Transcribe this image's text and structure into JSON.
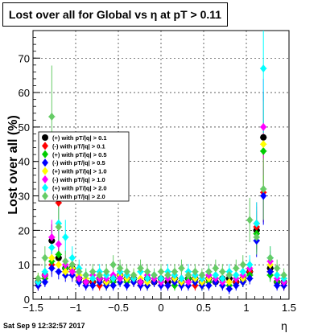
{
  "chart_data": {
    "type": "scatter",
    "title": "Lost over all for Global vs   η at pT > 0.11",
    "xlabel": "η",
    "ylabel": "Lost over all (%)",
    "xlim": [
      -1.5,
      1.5
    ],
    "ylim": [
      0,
      78
    ],
    "x_ticks": [
      -1.5,
      -1,
      -0.5,
      0,
      0.5,
      1,
      1.5
    ],
    "x_tick_labels": [
      "−1.5",
      "−1",
      "−0.5",
      "0",
      "0.5",
      "1",
      "1.5"
    ],
    "y_ticks": [
      0,
      10,
      20,
      30,
      40,
      50,
      60,
      70
    ],
    "y_tick_labels": [
      "0",
      "10",
      "20",
      "30",
      "40",
      "50",
      "60",
      "70"
    ],
    "grid": true,
    "legend_position": "upper-left",
    "footer": "Sat Sep  9 12:32:57 2017",
    "series": [
      {
        "name": "(+) with pT/|q| > 0.1",
        "marker": "circle",
        "color": "#000000",
        "points": [
          [
            -1.44,
            5
          ],
          [
            -1.36,
            7
          ],
          [
            -1.28,
            17
          ],
          [
            -1.2,
            12
          ],
          [
            -1.12,
            9
          ],
          [
            -1.04,
            9
          ],
          [
            -0.96,
            6
          ],
          [
            -0.88,
            5
          ],
          [
            -0.8,
            5
          ],
          [
            -0.72,
            6
          ],
          [
            -0.64,
            5
          ],
          [
            -0.56,
            6
          ],
          [
            -0.48,
            7
          ],
          [
            -0.4,
            6
          ],
          [
            -0.32,
            6
          ],
          [
            -0.24,
            5
          ],
          [
            -0.16,
            6
          ],
          [
            -0.08,
            5
          ],
          [
            0,
            6
          ],
          [
            0.08,
            5
          ],
          [
            0.16,
            6
          ],
          [
            0.24,
            5
          ],
          [
            0.32,
            6
          ],
          [
            0.4,
            6
          ],
          [
            0.48,
            5
          ],
          [
            0.56,
            6
          ],
          [
            0.64,
            5
          ],
          [
            0.72,
            6
          ],
          [
            0.8,
            6
          ],
          [
            0.88,
            5
          ],
          [
            0.96,
            6
          ],
          [
            1.04,
            8
          ],
          [
            1.12,
            20
          ],
          [
            1.2,
            47
          ],
          [
            1.28,
            9
          ],
          [
            1.36,
            5
          ],
          [
            1.44,
            5
          ]
        ]
      },
      {
        "name": "(-) with pT/|q| > 0.1",
        "marker": "diamond",
        "color": "#ff0000",
        "points": [
          [
            -1.44,
            4
          ],
          [
            -1.36,
            6
          ],
          [
            -1.28,
            10
          ],
          [
            -1.2,
            28
          ],
          [
            -1.12,
            8
          ],
          [
            -1.04,
            10
          ],
          [
            -0.96,
            6
          ],
          [
            -0.88,
            5
          ],
          [
            -0.8,
            5
          ],
          [
            -0.72,
            4
          ],
          [
            -0.64,
            5
          ],
          [
            -0.56,
            5
          ],
          [
            -0.48,
            6
          ],
          [
            -0.4,
            7
          ],
          [
            -0.32,
            5
          ],
          [
            -0.24,
            4
          ],
          [
            -0.16,
            5
          ],
          [
            -0.08,
            5
          ],
          [
            0,
            5
          ],
          [
            0.08,
            4
          ],
          [
            0.16,
            5
          ],
          [
            0.24,
            6
          ],
          [
            0.32,
            5
          ],
          [
            0.4,
            4
          ],
          [
            0.48,
            5
          ],
          [
            0.56,
            5
          ],
          [
            0.64,
            6
          ],
          [
            0.72,
            5
          ],
          [
            0.8,
            5
          ],
          [
            0.88,
            5
          ],
          [
            0.96,
            5
          ],
          [
            1.04,
            8
          ],
          [
            1.12,
            21
          ],
          [
            1.2,
            31
          ],
          [
            1.28,
            8
          ],
          [
            1.36,
            5
          ],
          [
            1.44,
            4
          ]
        ]
      },
      {
        "name": "(+) with pT/|q| > 0.5",
        "marker": "diamond",
        "color": "#00cc00",
        "points": [
          [
            -1.44,
            5
          ],
          [
            -1.36,
            6
          ],
          [
            -1.28,
            11
          ],
          [
            -1.2,
            13
          ],
          [
            -1.12,
            9
          ],
          [
            -1.04,
            8
          ],
          [
            -0.96,
            6
          ],
          [
            -0.88,
            5
          ],
          [
            -0.8,
            6
          ],
          [
            -0.72,
            5
          ],
          [
            -0.64,
            4
          ],
          [
            -0.56,
            5
          ],
          [
            -0.48,
            6
          ],
          [
            -0.4,
            5
          ],
          [
            -0.32,
            6
          ],
          [
            -0.24,
            5
          ],
          [
            -0.16,
            4
          ],
          [
            -0.08,
            6
          ],
          [
            0,
            5
          ],
          [
            0.08,
            6
          ],
          [
            0.16,
            4
          ],
          [
            0.24,
            5
          ],
          [
            0.32,
            6
          ],
          [
            0.4,
            5
          ],
          [
            0.48,
            4
          ],
          [
            0.56,
            5
          ],
          [
            0.64,
            6
          ],
          [
            0.72,
            5
          ],
          [
            0.8,
            4
          ],
          [
            0.88,
            6
          ],
          [
            0.96,
            5
          ],
          [
            1.04,
            7
          ],
          [
            1.12,
            19
          ],
          [
            1.2,
            43
          ],
          [
            1.28,
            7
          ],
          [
            1.36,
            5
          ],
          [
            1.44,
            5
          ]
        ]
      },
      {
        "name": "(-) with pT/|q| > 0.5",
        "marker": "diamond",
        "color": "#0000ff",
        "points": [
          [
            -1.44,
            4
          ],
          [
            -1.36,
            5
          ],
          [
            -1.28,
            9
          ],
          [
            -1.2,
            8
          ],
          [
            -1.12,
            7
          ],
          [
            -1.04,
            7
          ],
          [
            -0.96,
            5
          ],
          [
            -0.88,
            4
          ],
          [
            -0.8,
            4
          ],
          [
            -0.72,
            5
          ],
          [
            -0.64,
            4
          ],
          [
            -0.56,
            4
          ],
          [
            -0.48,
            5
          ],
          [
            -0.4,
            4
          ],
          [
            -0.32,
            5
          ],
          [
            -0.24,
            4
          ],
          [
            -0.16,
            4
          ],
          [
            -0.08,
            5
          ],
          [
            0,
            4
          ],
          [
            0.08,
            4
          ],
          [
            0.16,
            5
          ],
          [
            0.24,
            4
          ],
          [
            0.32,
            4
          ],
          [
            0.4,
            5
          ],
          [
            0.48,
            4
          ],
          [
            0.56,
            4
          ],
          [
            0.64,
            5
          ],
          [
            0.72,
            4
          ],
          [
            0.8,
            3
          ],
          [
            0.88,
            4
          ],
          [
            0.96,
            5
          ],
          [
            1.04,
            6
          ],
          [
            1.12,
            17
          ],
          [
            1.2,
            30
          ],
          [
            1.28,
            8
          ],
          [
            1.36,
            4
          ],
          [
            1.44,
            4
          ]
        ]
      },
      {
        "name": "(+) with pT/|q| > 1.0",
        "marker": "diamond",
        "color": "#ffff00",
        "points": [
          [
            -1.44,
            6
          ],
          [
            -1.36,
            7
          ],
          [
            -1.28,
            12
          ],
          [
            -1.2,
            10
          ],
          [
            -1.12,
            8
          ],
          [
            -1.04,
            9
          ],
          [
            -0.96,
            7
          ],
          [
            -0.88,
            6
          ],
          [
            -0.8,
            6
          ],
          [
            -0.72,
            6
          ],
          [
            -0.64,
            5
          ],
          [
            -0.56,
            6
          ],
          [
            -0.48,
            7
          ],
          [
            -0.4,
            6
          ],
          [
            -0.32,
            7
          ],
          [
            -0.24,
            6
          ],
          [
            -0.16,
            5
          ],
          [
            -0.08,
            6
          ],
          [
            0,
            6
          ],
          [
            0.08,
            7
          ],
          [
            0.16,
            6
          ],
          [
            0.24,
            5
          ],
          [
            0.32,
            7
          ],
          [
            0.4,
            6
          ],
          [
            0.48,
            5
          ],
          [
            0.56,
            6
          ],
          [
            0.64,
            7
          ],
          [
            0.72,
            6
          ],
          [
            0.8,
            5
          ],
          [
            0.88,
            7
          ],
          [
            0.96,
            6
          ],
          [
            1.04,
            9
          ],
          [
            1.12,
            22
          ],
          [
            1.2,
            45
          ],
          [
            1.28,
            10
          ],
          [
            1.36,
            7
          ],
          [
            1.44,
            6
          ]
        ]
      },
      {
        "name": "(-) with pT/|q| > 1.0",
        "marker": "diamond",
        "color": "#ff00ff",
        "points": [
          [
            -1.44,
            5
          ],
          [
            -1.36,
            7
          ],
          [
            -1.28,
            18
          ],
          [
            -1.2,
            16
          ],
          [
            -1.12,
            10
          ],
          [
            -1.04,
            8
          ],
          [
            -0.96,
            6
          ],
          [
            -0.88,
            5
          ],
          [
            -0.8,
            7
          ],
          [
            -0.72,
            6
          ],
          [
            -0.64,
            6
          ],
          [
            -0.56,
            7
          ],
          [
            -0.48,
            6
          ],
          [
            -0.4,
            7
          ],
          [
            -0.32,
            6
          ],
          [
            -0.24,
            5
          ],
          [
            -0.16,
            7
          ],
          [
            -0.08,
            6
          ],
          [
            0,
            5
          ],
          [
            0.08,
            6
          ],
          [
            0.16,
            7
          ],
          [
            0.24,
            6
          ],
          [
            0.32,
            5
          ],
          [
            0.4,
            7
          ],
          [
            0.48,
            6
          ],
          [
            0.56,
            7
          ],
          [
            0.64,
            6
          ],
          [
            0.72,
            5
          ],
          [
            0.8,
            7
          ],
          [
            0.88,
            6
          ],
          [
            0.96,
            7
          ],
          [
            1.04,
            9
          ],
          [
            1.12,
            22
          ],
          [
            1.2,
            50
          ],
          [
            1.28,
            11
          ],
          [
            1.36,
            6
          ],
          [
            1.44,
            5
          ]
        ]
      },
      {
        "name": "(+) with pT/|q| > 2.0",
        "marker": "diamond",
        "color": "#00ffff",
        "points": [
          [
            -1.44,
            5
          ],
          [
            -1.36,
            8
          ],
          [
            -1.28,
            15
          ],
          [
            -1.2,
            22
          ],
          [
            -1.12,
            18
          ],
          [
            -1.04,
            12
          ],
          [
            -0.96,
            9
          ],
          [
            -0.88,
            7
          ],
          [
            -0.8,
            6
          ],
          [
            -0.72,
            8
          ],
          [
            -0.64,
            7
          ],
          [
            -0.56,
            6
          ],
          [
            -0.48,
            8
          ],
          [
            -0.4,
            7
          ],
          [
            -0.32,
            6
          ],
          [
            -0.24,
            8
          ],
          [
            -0.16,
            6
          ],
          [
            -0.08,
            7
          ],
          [
            0,
            6
          ],
          [
            0.08,
            8
          ],
          [
            0.16,
            7
          ],
          [
            0.24,
            6
          ],
          [
            0.32,
            8
          ],
          [
            0.4,
            7
          ],
          [
            0.48,
            6
          ],
          [
            0.56,
            8
          ],
          [
            0.64,
            7
          ],
          [
            0.72,
            6
          ],
          [
            0.8,
            8
          ],
          [
            0.88,
            7
          ],
          [
            0.96,
            8
          ],
          [
            1.04,
            10
          ],
          [
            1.12,
            22
          ],
          [
            1.2,
            67
          ],
          [
            1.28,
            12
          ],
          [
            1.36,
            7
          ],
          [
            1.44,
            6
          ]
        ]
      },
      {
        "name": "(-) with pT/|q| > 2.0",
        "marker": "diamond",
        "color": "#66cc66",
        "points": [
          [
            -1.44,
            6
          ],
          [
            -1.36,
            12
          ],
          [
            -1.28,
            53
          ],
          [
            -1.2,
            21
          ],
          [
            -1.12,
            11
          ],
          [
            -1.04,
            10
          ],
          [
            -0.96,
            8
          ],
          [
            -0.88,
            7
          ],
          [
            -0.8,
            8
          ],
          [
            -0.72,
            7
          ],
          [
            -0.64,
            8
          ],
          [
            -0.56,
            10
          ],
          [
            -0.48,
            9
          ],
          [
            -0.4,
            8
          ],
          [
            -0.32,
            7
          ],
          [
            -0.24,
            9
          ],
          [
            -0.16,
            8
          ],
          [
            -0.08,
            7
          ],
          [
            0,
            8
          ],
          [
            0.08,
            7
          ],
          [
            0.16,
            8
          ],
          [
            0.24,
            9
          ],
          [
            0.32,
            7
          ],
          [
            0.4,
            8
          ],
          [
            0.48,
            7
          ],
          [
            0.56,
            8
          ],
          [
            0.64,
            9
          ],
          [
            0.72,
            8
          ],
          [
            0.8,
            7
          ],
          [
            0.88,
            9
          ],
          [
            0.96,
            10
          ],
          [
            1.04,
            23
          ],
          [
            1.12,
            18
          ],
          [
            1.2,
            32
          ],
          [
            1.28,
            12
          ],
          [
            1.36,
            9
          ],
          [
            1.44,
            7
          ]
        ]
      }
    ]
  }
}
